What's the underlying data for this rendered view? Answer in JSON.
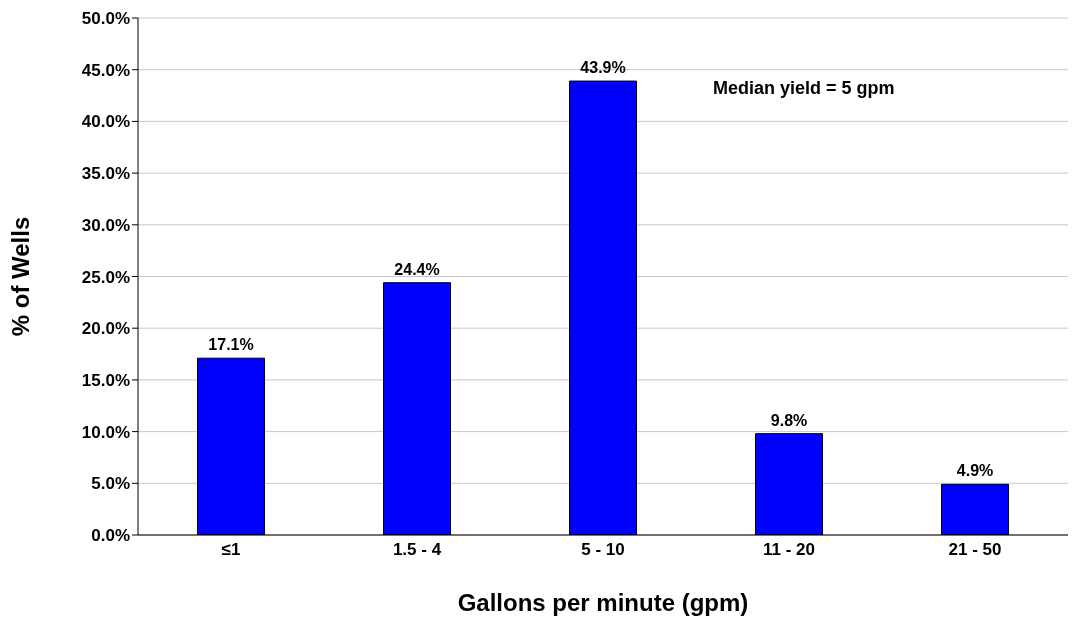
{
  "chart_data": {
    "type": "bar",
    "xlabel": "Gallons per minute (gpm)",
    "ylabel": "% of Wells",
    "categories": [
      "≤1",
      "1.5 - 4",
      "5 - 10",
      "11 - 20",
      "21 - 50"
    ],
    "values": [
      17.1,
      24.4,
      43.9,
      9.8,
      4.9
    ],
    "value_labels": [
      "17.1%",
      "24.4%",
      "43.9%",
      "9.8%",
      "4.9%"
    ],
    "color": "#0000ff",
    "ylim": [
      0,
      50
    ],
    "yticks": [
      {
        "value": 0,
        "label": "0.0%"
      },
      {
        "value": 5,
        "label": "5.0%"
      },
      {
        "value": 10,
        "label": "10.0%"
      },
      {
        "value": 15,
        "label": "15.0%"
      },
      {
        "value": 20,
        "label": "20.0%"
      },
      {
        "value": 25,
        "label": "25.0%"
      },
      {
        "value": 30,
        "label": "30.0%"
      },
      {
        "value": 35,
        "label": "35.0%"
      },
      {
        "value": 40,
        "label": "40.0%"
      },
      {
        "value": 45,
        "label": "45.0%"
      },
      {
        "value": 50,
        "label": "50.0%"
      }
    ],
    "grid": "y",
    "annotations": [
      "Median yield = 5 gpm"
    ]
  }
}
